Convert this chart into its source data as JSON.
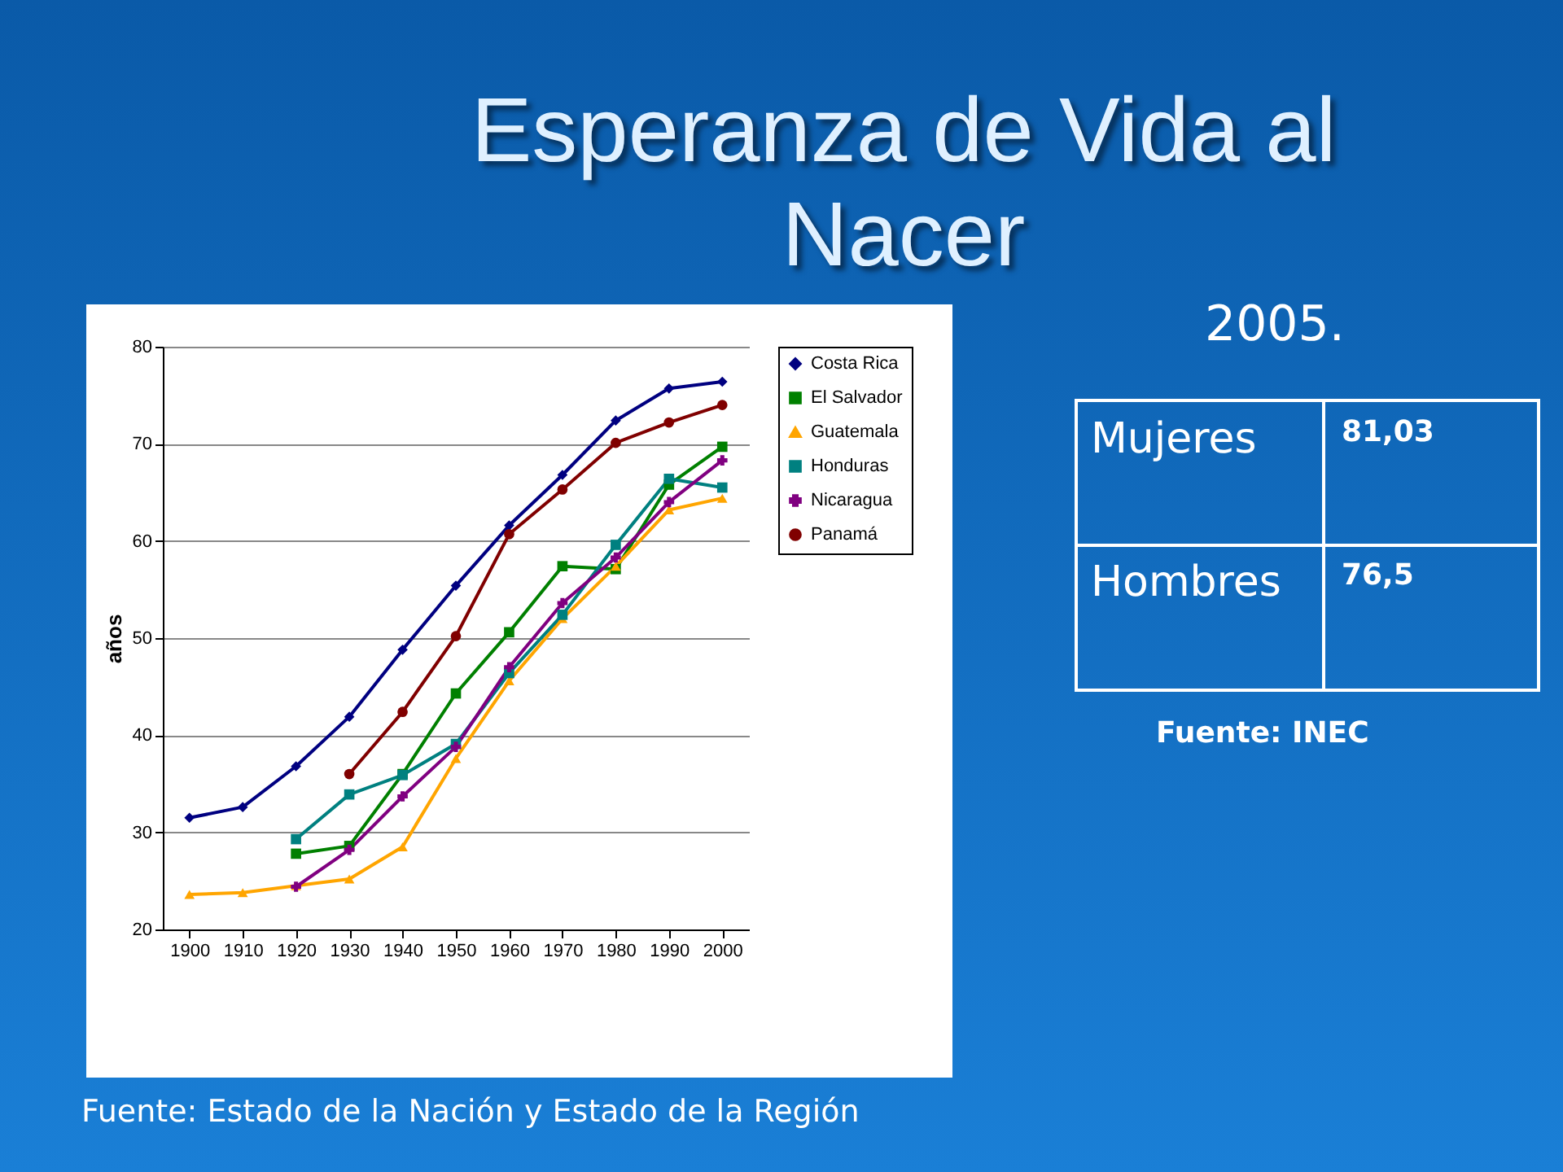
{
  "chart_data": {
    "type": "line",
    "title": "Esperanza de Vida al Nacer",
    "ylabel": "años",
    "annotations": [
      "2005.",
      "Mujeres",
      "81,03",
      "Hombres",
      "76,5",
      "Fuente: INEC",
      "Fuente: Estado de la Nación y Estado de la Región"
    ],
    "categories": [
      "1900",
      "1910",
      "1920",
      "1930",
      "1940",
      "1950",
      "1960",
      "1970",
      "1980",
      "1990",
      "2000"
    ],
    "series": [
      {
        "name": "Costa Rica",
        "color": "#000080",
        "marker": "diamond",
        "values": [
          31.5,
          32.6,
          36.8,
          41.9,
          48.8,
          55.4,
          61.6,
          66.8,
          72.4,
          75.7,
          76.4
        ]
      },
      {
        "name": "El Salvador",
        "color": "#008000",
        "marker": "square",
        "values": [
          null,
          null,
          27.8,
          28.6,
          36.0,
          44.3,
          50.6,
          57.4,
          57.1,
          65.8,
          69.7
        ]
      },
      {
        "name": "Guatemala",
        "color": "#ffa500",
        "marker": "triangle",
        "values": [
          23.6,
          23.8,
          24.5,
          25.2,
          28.5,
          37.6,
          45.6,
          52.0,
          57.4,
          63.2,
          64.4
        ]
      },
      {
        "name": "Honduras",
        "color": "#008080",
        "marker": "square",
        "values": [
          null,
          null,
          29.3,
          33.9,
          35.9,
          39.1,
          46.4,
          52.4,
          59.6,
          66.4,
          65.5
        ]
      },
      {
        "name": "Nicaragua",
        "color": "#800080",
        "marker": "cross",
        "values": [
          null,
          null,
          24.4,
          28.2,
          33.7,
          38.8,
          47.0,
          53.6,
          58.3,
          64.0,
          68.3
        ]
      },
      {
        "name": "Panamá",
        "color": "#800000",
        "marker": "circle",
        "values": [
          null,
          null,
          null,
          36.0,
          42.4,
          50.2,
          60.7,
          65.3,
          70.1,
          72.2,
          74.0
        ]
      }
    ],
    "ylim": [
      20,
      80
    ],
    "yticks": [
      20,
      30,
      40,
      50,
      60,
      70,
      80
    ],
    "grid": "y",
    "legend": "right"
  }
}
